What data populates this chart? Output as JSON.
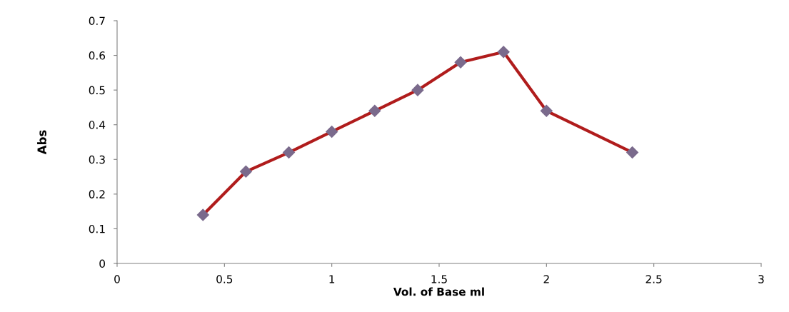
{
  "chart_data": {
    "type": "line",
    "xlabel": "Vol. of Base ml",
    "ylabel": "Abs",
    "x": [
      0.4,
      0.6,
      0.8,
      1.0,
      1.2,
      1.4,
      1.6,
      1.8,
      2.0,
      2.4
    ],
    "series": [
      {
        "color": "#b01c1c",
        "values": [
          0.14,
          0.265,
          0.32,
          0.38,
          0.44,
          0.5,
          0.58,
          0.61,
          0.44,
          0.32
        ],
        "colors": [
          "#7a6a8c",
          "#7a6a8c",
          "#7a6a8c",
          "#7a6a8c",
          "#7a6a8c",
          "#7a6a8c",
          "#7a6a8c",
          "#7a6a8c",
          "#7a6a8c",
          "#7a6a8c"
        ]
      }
    ],
    "xlim": [
      0,
      3
    ],
    "xticks": [
      0,
      0.5,
      1,
      1.5,
      2,
      2.5,
      3
    ],
    "ylim": [
      0,
      0.7
    ],
    "yticks": [
      0,
      0.1,
      0.2,
      0.3,
      0.4,
      0.5,
      0.6,
      0.7
    ],
    "marker": "diamond",
    "line_style": "solid",
    "grid": false,
    "legend": false
  }
}
